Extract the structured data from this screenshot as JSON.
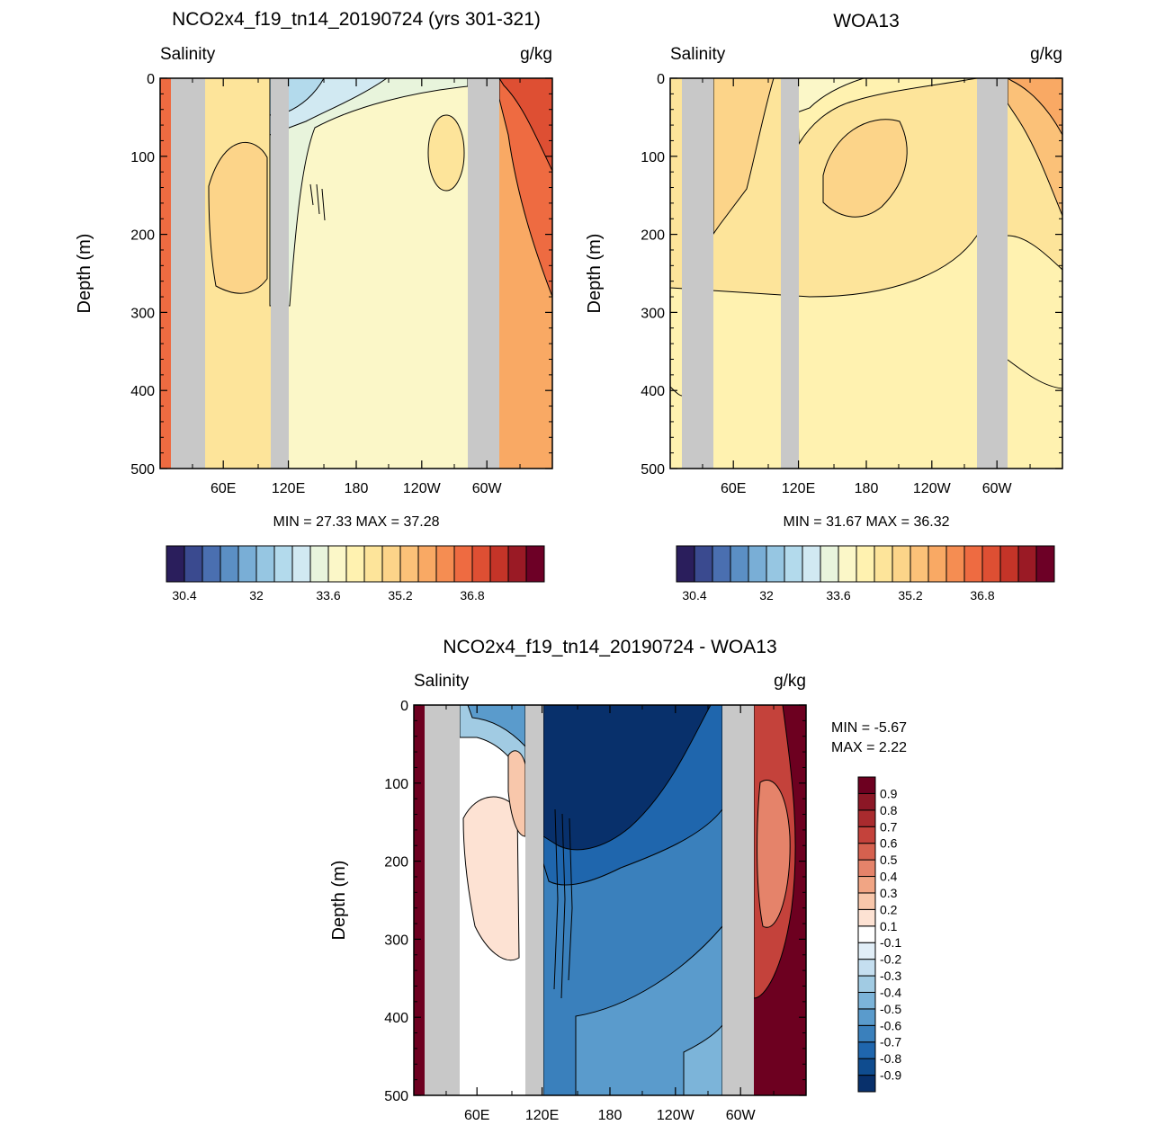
{
  "colors": {
    "land": "#c8c8c8",
    "contour": "#000000",
    "abs_scale": [
      "#2a1e5c",
      "#3a4a8f",
      "#4a6fb0",
      "#5b8fc4",
      "#79aed6",
      "#96c6e2",
      "#b3daec",
      "#d1e9f2",
      "#e8f4dc",
      "#fbf7c8",
      "#fff2b0",
      "#fde49a",
      "#fcd489",
      "#fbc178",
      "#f9a964",
      "#f58d52",
      "#ee6b41",
      "#de4f33",
      "#c43428",
      "#9a1a25",
      "#6d0026"
    ],
    "diff_scale": [
      "#08306b",
      "#0f4c8f",
      "#1f66ad",
      "#3a80bc",
      "#5a9bcc",
      "#7cb4d9",
      "#a1cbe3",
      "#c5dff0",
      "#e1eef7",
      "#ffffff",
      "#fde2d3",
      "#f8c7ab",
      "#f1a584",
      "#e5836a",
      "#d6614f",
      "#c4423b",
      "#a92b2e",
      "#8c1726",
      "#6d0020"
    ]
  },
  "chart_data": [
    {
      "type": "heatmap",
      "name": "model",
      "title": "NCO2x4_f19_tn14_20190724 (yrs 301-321)",
      "left_label": "Salinity",
      "right_label": "g/kg",
      "ylabel": "Depth (m)",
      "xlabel": "",
      "ylim": [
        500,
        0
      ],
      "yticks": [
        "0",
        "100",
        "200",
        "300",
        "400",
        "500"
      ],
      "xticks": [
        "60E",
        "120E",
        "180",
        "120W",
        "60W"
      ],
      "stats": "MIN =  27.33  MAX =  37.28",
      "colorbar": {
        "orientation": "horizontal",
        "n_colors": 21,
        "tick_labels": [
          "30.4",
          "32",
          "33.6",
          "35.2",
          "36.8"
        ]
      },
      "fields": {
        "min": 27.33,
        "max": 37.28
      }
    },
    {
      "type": "heatmap",
      "name": "observations",
      "title": "WOA13",
      "left_label": "Salinity",
      "right_label": "g/kg",
      "ylabel": "Depth (m)",
      "xlabel": "",
      "ylim": [
        500,
        0
      ],
      "yticks": [
        "0",
        "100",
        "200",
        "300",
        "400",
        "500"
      ],
      "xticks": [
        "60E",
        "120E",
        "180",
        "120W",
        "60W"
      ],
      "stats": "MIN =  31.67  MAX =  36.32",
      "colorbar": {
        "orientation": "horizontal",
        "n_colors": 21,
        "tick_labels": [
          "30.4",
          "32",
          "33.6",
          "35.2",
          "36.8"
        ]
      },
      "fields": {
        "min": 31.67,
        "max": 36.32
      }
    },
    {
      "type": "heatmap",
      "name": "difference",
      "title": "NCO2x4_f19_tn14_20190724 - WOA13",
      "left_label": "Salinity",
      "right_label": "g/kg",
      "ylabel": "Depth (m)",
      "xlabel": "",
      "ylim": [
        500,
        0
      ],
      "yticks": [
        "0",
        "100",
        "200",
        "300",
        "400",
        "500"
      ],
      "xticks": [
        "60E",
        "120E",
        "180",
        "120W",
        "60W"
      ],
      "stats_min": "MIN =  -5.67",
      "stats_max": "MAX =   2.22",
      "colorbar": {
        "orientation": "vertical",
        "n_colors": 19,
        "tick_labels": [
          "0.9",
          "0.8",
          "0.7",
          "0.6",
          "0.5",
          "0.4",
          "0.3",
          "0.2",
          "0.1",
          "-0.1",
          "-0.2",
          "-0.3",
          "-0.4",
          "-0.5",
          "-0.6",
          "-0.7",
          "-0.8",
          "-0.9"
        ]
      },
      "fields": {
        "min": -5.67,
        "max": 2.22
      }
    }
  ]
}
